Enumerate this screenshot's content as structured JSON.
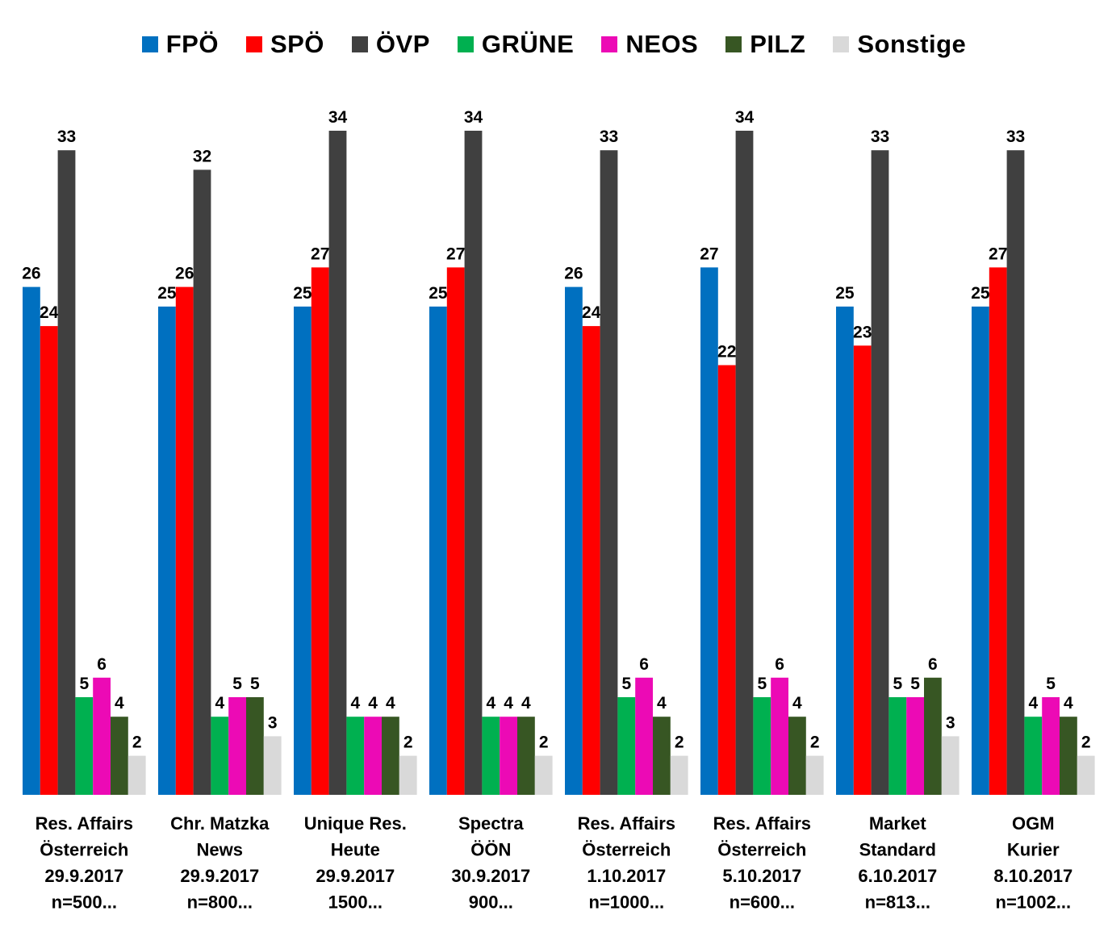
{
  "chart_data": {
    "type": "bar",
    "title": "",
    "xlabel": "",
    "ylabel": "",
    "ylim": [
      0,
      34
    ],
    "grid": false,
    "legend_position": "top",
    "categories": [
      [
        "Res. Affairs",
        "Österreich",
        "29.9.2017",
        "n=500..."
      ],
      [
        "Chr. Matzka",
        "News",
        "29.9.2017",
        "n=800..."
      ],
      [
        "Unique Res.",
        "Heute",
        "29.9.2017",
        "1500..."
      ],
      [
        "Spectra",
        "ÖÖN",
        "30.9.2017",
        "900..."
      ],
      [
        "Res. Affairs",
        "Österreich",
        "1.10.2017",
        "n=1000..."
      ],
      [
        "Res. Affairs",
        "Österreich",
        "5.10.2017",
        "n=600..."
      ],
      [
        "Market",
        "Standard",
        "6.10.2017",
        "n=813..."
      ],
      [
        "OGM",
        "Kurier",
        "8.10.2017",
        "n=1002..."
      ]
    ],
    "series": [
      {
        "name": "FPÖ",
        "color": "#0070C0",
        "values": [
          26,
          25,
          25,
          25,
          26,
          27,
          25,
          25
        ]
      },
      {
        "name": "SPÖ",
        "color": "#FF0000",
        "values": [
          24,
          26,
          27,
          27,
          24,
          22,
          23,
          27
        ]
      },
      {
        "name": "ÖVP",
        "color": "#404040",
        "values": [
          33,
          32,
          34,
          34,
          33,
          34,
          33,
          33
        ]
      },
      {
        "name": "GRÜNE",
        "color": "#00B050",
        "values": [
          5,
          4,
          4,
          4,
          5,
          5,
          5,
          4
        ]
      },
      {
        "name": "NEOS",
        "color": "#EC0AB5",
        "values": [
          6,
          5,
          4,
          4,
          6,
          6,
          5,
          5
        ]
      },
      {
        "name": "PILZ",
        "color": "#375623",
        "values": [
          4,
          5,
          4,
          4,
          4,
          4,
          6,
          4
        ]
      },
      {
        "name": "Sonstige",
        "color": "#D9D9D9",
        "values": [
          2,
          3,
          2,
          2,
          2,
          2,
          3,
          2
        ]
      }
    ]
  }
}
